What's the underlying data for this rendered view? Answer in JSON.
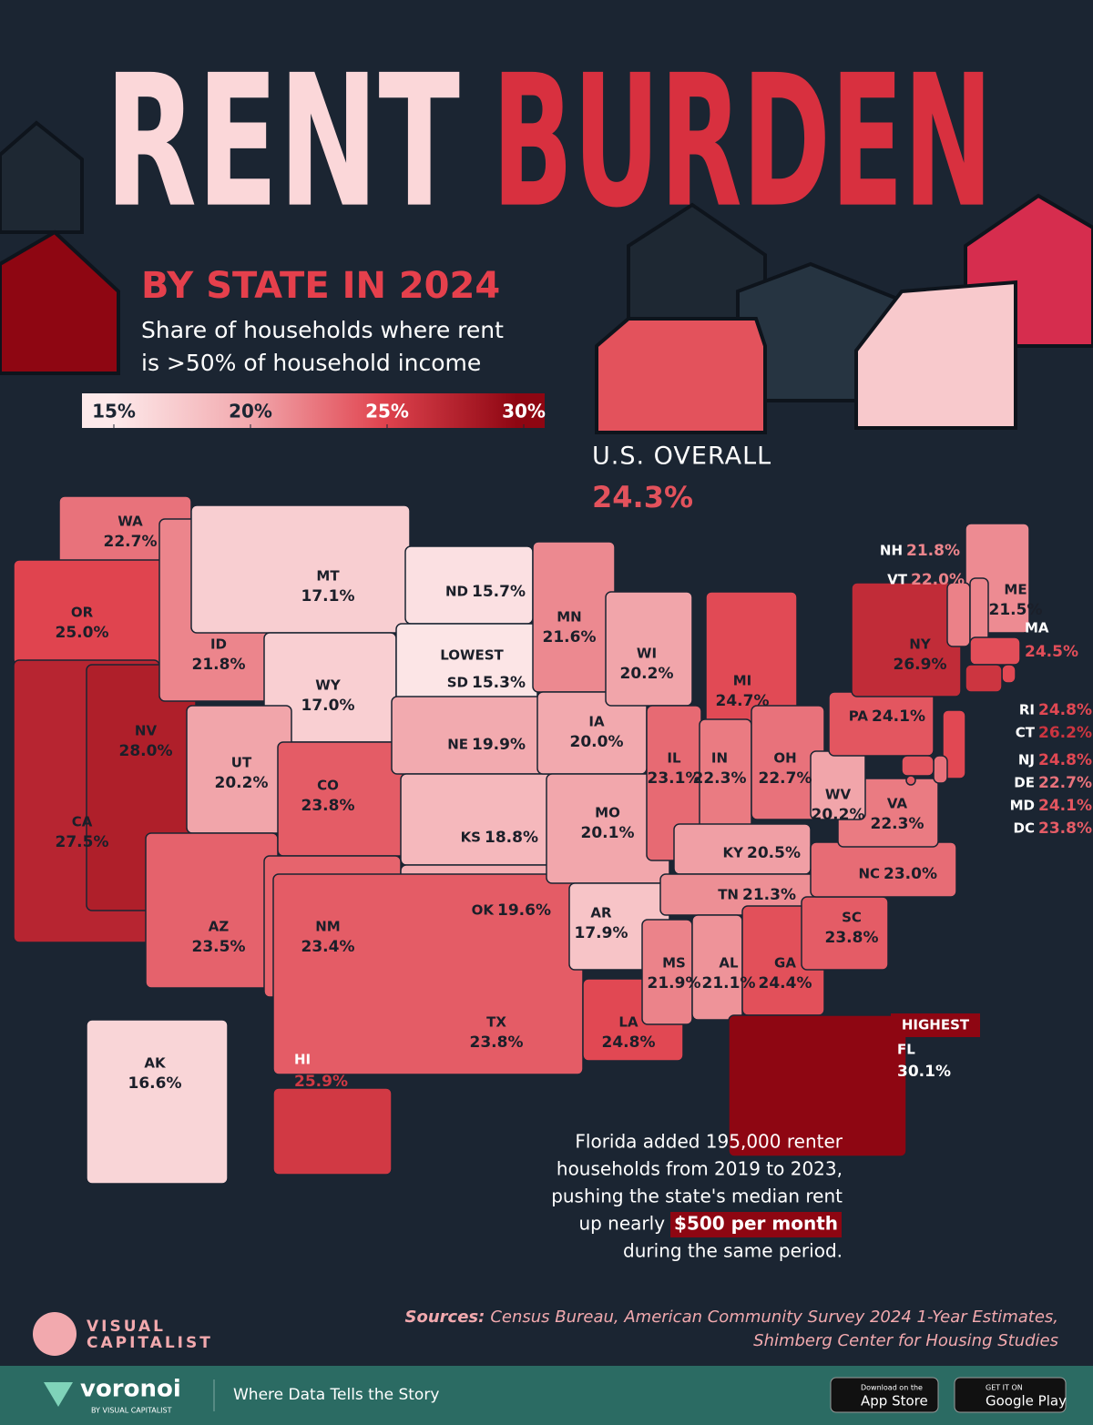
{
  "chart_data": {
    "type": "choropleth",
    "title_words": [
      "RENT",
      "BURDEN"
    ],
    "subtitle": "BY STATE IN 2024",
    "description_lines": [
      "Share of households where rent",
      "is >50% of household income"
    ],
    "legend": {
      "ticks": [
        {
          "value": 15,
          "label": "15%"
        },
        {
          "value": 20,
          "label": "20%"
        },
        {
          "value": 25,
          "label": "25%"
        },
        {
          "value": 30,
          "label": "30%"
        }
      ],
      "colors": [
        "#fde9ea",
        "#f2a9ae",
        "#e0444f",
        "#8e0612"
      ]
    },
    "overall": {
      "label": "U.S. OVERALL",
      "value": 24.3,
      "value_label": "24.3%"
    },
    "lowest_label": "LOWEST",
    "highest_label": "HIGHEST",
    "states": [
      {
        "abbr": "WA",
        "value": 22.7,
        "label": "22.7%"
      },
      {
        "abbr": "OR",
        "value": 25.0,
        "label": "25.0%"
      },
      {
        "abbr": "CA",
        "value": 27.5,
        "label": "27.5%"
      },
      {
        "abbr": "NV",
        "value": 28.0,
        "label": "28.0%"
      },
      {
        "abbr": "ID",
        "value": 21.8,
        "label": "21.8%"
      },
      {
        "abbr": "MT",
        "value": 17.1,
        "label": "17.1%"
      },
      {
        "abbr": "WY",
        "value": 17.0,
        "label": "17.0%"
      },
      {
        "abbr": "UT",
        "value": 20.2,
        "label": "20.2%"
      },
      {
        "abbr": "AZ",
        "value": 23.5,
        "label": "23.5%"
      },
      {
        "abbr": "CO",
        "value": 23.8,
        "label": "23.8%"
      },
      {
        "abbr": "NM",
        "value": 23.4,
        "label": "23.4%"
      },
      {
        "abbr": "ND",
        "value": 15.7,
        "label": "15.7%"
      },
      {
        "abbr": "SD",
        "value": 15.3,
        "label": "15.3%"
      },
      {
        "abbr": "NE",
        "value": 19.9,
        "label": "19.9%"
      },
      {
        "abbr": "KS",
        "value": 18.8,
        "label": "18.8%"
      },
      {
        "abbr": "OK",
        "value": 19.6,
        "label": "19.6%"
      },
      {
        "abbr": "TX",
        "value": 23.8,
        "label": "23.8%"
      },
      {
        "abbr": "MN",
        "value": 21.6,
        "label": "21.6%"
      },
      {
        "abbr": "IA",
        "value": 20.0,
        "label": "20.0%"
      },
      {
        "abbr": "MO",
        "value": 20.1,
        "label": "20.1%"
      },
      {
        "abbr": "AR",
        "value": 17.9,
        "label": "17.9%"
      },
      {
        "abbr": "LA",
        "value": 24.8,
        "label": "24.8%"
      },
      {
        "abbr": "WI",
        "value": 20.2,
        "label": "20.2%"
      },
      {
        "abbr": "IL",
        "value": 23.1,
        "label": "23.1%"
      },
      {
        "abbr": "MI",
        "value": 24.7,
        "label": "24.7%"
      },
      {
        "abbr": "IN",
        "value": 22.3,
        "label": "22.3%"
      },
      {
        "abbr": "OH",
        "value": 22.7,
        "label": "22.7%"
      },
      {
        "abbr": "KY",
        "value": 20.5,
        "label": "20.5%"
      },
      {
        "abbr": "TN",
        "value": 21.3,
        "label": "21.3%"
      },
      {
        "abbr": "MS",
        "value": 21.9,
        "label": "21.9%"
      },
      {
        "abbr": "AL",
        "value": 21.1,
        "label": "21.1%"
      },
      {
        "abbr": "GA",
        "value": 24.4,
        "label": "24.4%"
      },
      {
        "abbr": "FL",
        "value": 30.1,
        "label": "30.1%"
      },
      {
        "abbr": "SC",
        "value": 23.8,
        "label": "23.8%"
      },
      {
        "abbr": "NC",
        "value": 23.0,
        "label": "23.0%"
      },
      {
        "abbr": "VA",
        "value": 22.3,
        "label": "22.3%"
      },
      {
        "abbr": "WV",
        "value": 20.2,
        "label": "20.2%"
      },
      {
        "abbr": "PA",
        "value": 24.1,
        "label": "24.1%"
      },
      {
        "abbr": "NY",
        "value": 26.9,
        "label": "26.9%"
      },
      {
        "abbr": "ME",
        "value": 21.5,
        "label": "21.5%"
      },
      {
        "abbr": "VT",
        "value": 22.0,
        "label": "22.0%"
      },
      {
        "abbr": "NH",
        "value": 21.8,
        "label": "21.8%"
      },
      {
        "abbr": "MA",
        "value": 24.5,
        "label": "24.5%"
      },
      {
        "abbr": "RI",
        "value": 24.8,
        "label": "24.8%"
      },
      {
        "abbr": "CT",
        "value": 26.2,
        "label": "26.2%"
      },
      {
        "abbr": "NJ",
        "value": 24.8,
        "label": "24.8%"
      },
      {
        "abbr": "DE",
        "value": 22.7,
        "label": "22.7%"
      },
      {
        "abbr": "MD",
        "value": 24.1,
        "label": "24.1%"
      },
      {
        "abbr": "DC",
        "value": 23.8,
        "label": "23.8%"
      },
      {
        "abbr": "AK",
        "value": 16.6,
        "label": "16.6%"
      },
      {
        "abbr": "HI",
        "value": 25.9,
        "label": "25.9%"
      }
    ],
    "annotation": {
      "lines": [
        "Florida added 195,000 renter",
        "households from 2019 to 2023,",
        "pushing the state's median rent",
        "up nearly"
      ],
      "highlight": "$500 per month",
      "last": "during the same period."
    },
    "sources": {
      "label": "Sources:",
      "lines": [
        "Census Bureau, American Community Survey 2024 1-Year Estimates,",
        "Shimberg Center for Housing Studies"
      ]
    },
    "brand": {
      "logo": "VISUAL",
      "logo2": "CAPITALIST"
    },
    "footer": {
      "name": "voronoi",
      "by": "BY VISUAL CAPITALIST",
      "tagline": "Where Data Tells the Story",
      "app_small": "Download on the",
      "app": "App Store",
      "play_small": "GET IT ON",
      "play": "Google Play"
    }
  }
}
